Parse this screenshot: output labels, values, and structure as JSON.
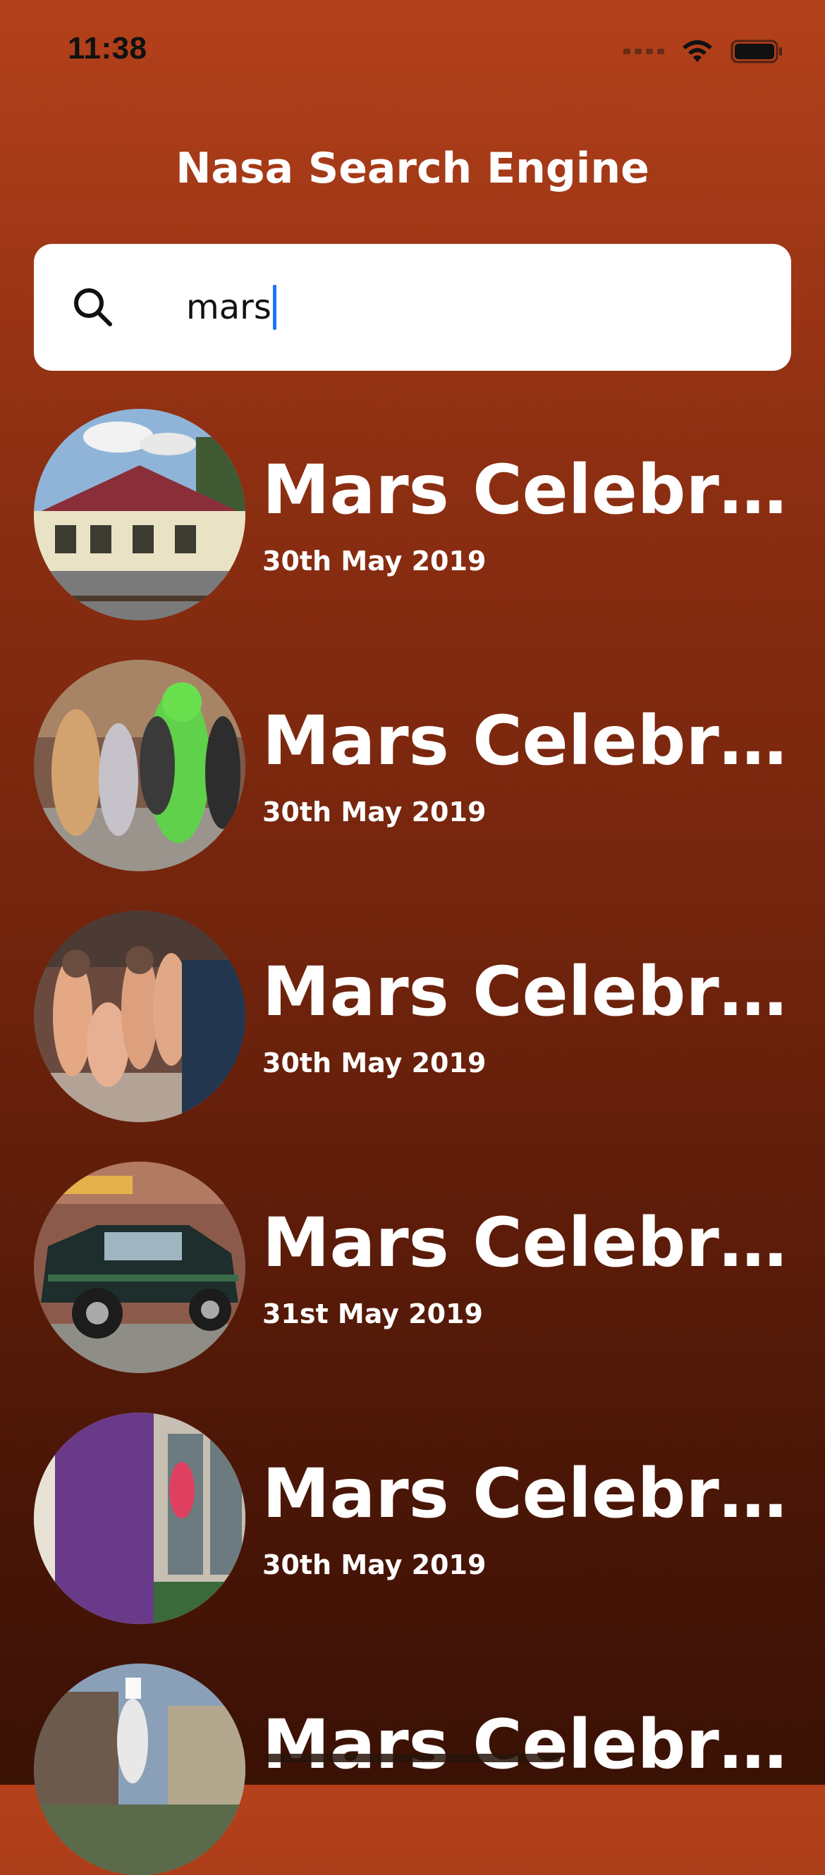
{
  "status_bar": {
    "time": "11:38",
    "icons": [
      "cellular-signal-icon",
      "wifi-icon",
      "battery-icon"
    ]
  },
  "header": {
    "title": "Nasa Search Engine"
  },
  "search": {
    "value": "mars",
    "icon": "search-icon"
  },
  "results": [
    {
      "title": "Mars Celebr…",
      "date": "30th May 2019",
      "image": "train-station-photo"
    },
    {
      "title": "Mars Celebr…",
      "date": "30th May 2019",
      "image": "green-alien-costume-crowd-photo"
    },
    {
      "title": "Mars Celebr…",
      "date": "30th May 2019",
      "image": "spacesuit-costumes-photo"
    },
    {
      "title": "Mars Celebr…",
      "date": "31st May 2019",
      "image": "decorated-suv-photo"
    },
    {
      "title": "Mars Celebr…",
      "date": "30th May 2019",
      "image": "upmc-primary-care-sign-photo"
    },
    {
      "title": "Mars Celebr…",
      "date": "",
      "image": "parade-performer-photo"
    }
  ],
  "colors": {
    "background_top": "#b4411b",
    "background_bottom": "#3a1105",
    "text": "#ffffff",
    "search_background": "#ffffff",
    "caret": "#1d74f5"
  }
}
